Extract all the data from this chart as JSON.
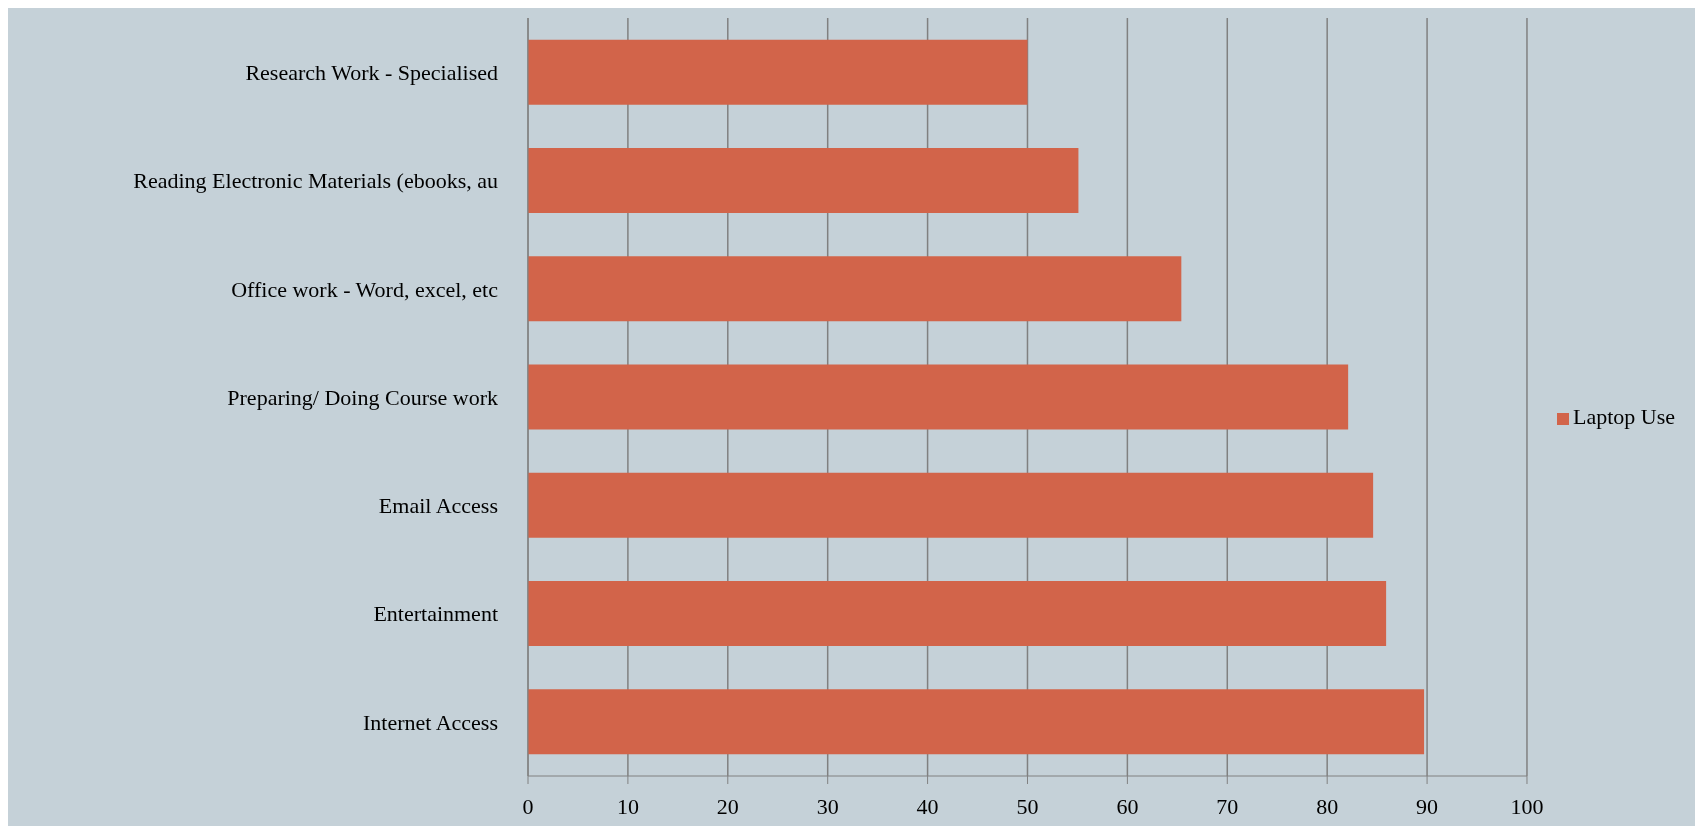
{
  "chart_data": {
    "type": "bar",
    "orientation": "horizontal",
    "categories": [
      "Research Work - Specialised",
      "Reading Electronic Materials (ebooks, au",
      "Office work - Word, excel, etc",
      "Preparing/ Doing Course work",
      "Email Access",
      "Entertainment",
      "Internet Access"
    ],
    "series": [
      {
        "name": "Laptop Use",
        "color": "#d2644a",
        "values": [
          50,
          55.1,
          65.4,
          82.1,
          84.6,
          85.9,
          89.7
        ]
      }
    ],
    "xlim": [
      0,
      100
    ],
    "xticks": [
      0,
      10,
      20,
      30,
      40,
      50,
      60,
      70,
      80,
      90,
      100
    ],
    "grid": "x",
    "legend": "right"
  }
}
